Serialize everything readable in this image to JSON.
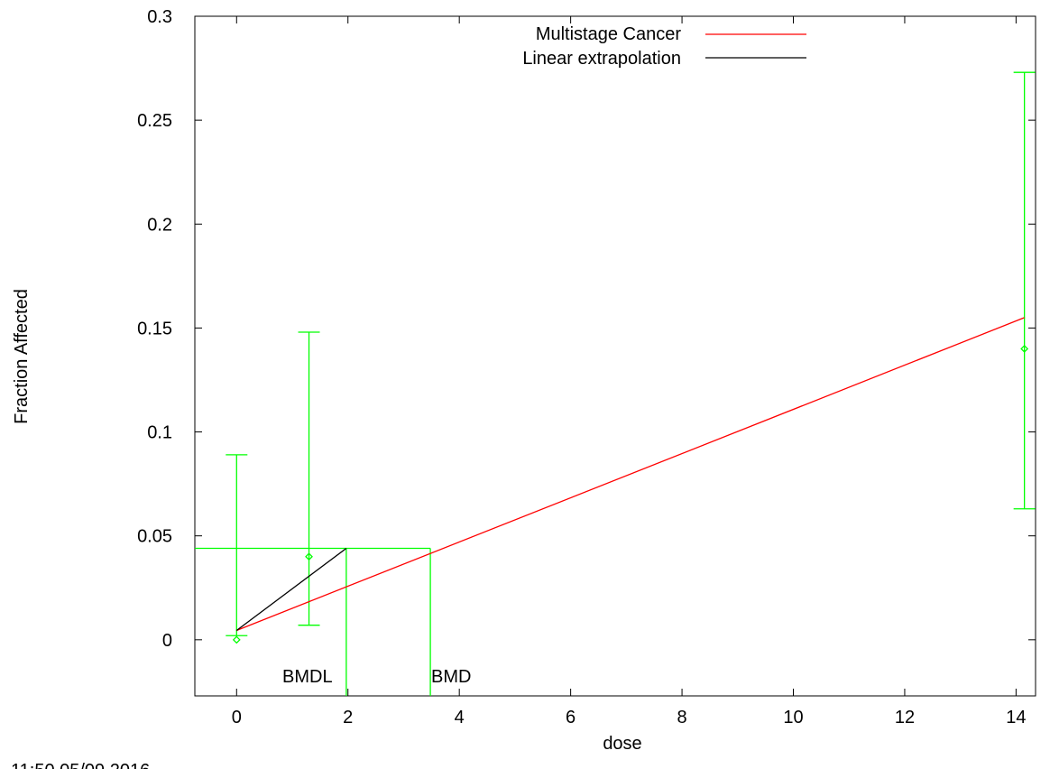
{
  "chart_data": {
    "type": "line",
    "title": "",
    "xlabel": "dose",
    "ylabel": "Fraction Affected",
    "xlim": [
      -0.75,
      14.35
    ],
    "ylim": [
      -0.027,
      0.3
    ],
    "xticks": [
      0,
      2,
      4,
      6,
      8,
      10,
      12,
      14
    ],
    "yticks": [
      0,
      0.05,
      0.1,
      0.15,
      0.2,
      0.25,
      0.3
    ],
    "ytick_labels": [
      "0",
      "0.05",
      "0.1",
      "0.15",
      "0.2",
      "0.25",
      "0.3"
    ],
    "grid": false,
    "legend_position": "top-center",
    "series": [
      {
        "name": "Multistage Cancer",
        "color": "#ff0000",
        "kind": "line",
        "x": [
          0,
          14.15
        ],
        "y": [
          0.0045,
          0.155
        ]
      },
      {
        "name": "Linear extrapolation",
        "color": "#000000",
        "kind": "line",
        "x": [
          0,
          1.97
        ],
        "y": [
          0.0045,
          0.044
        ]
      }
    ],
    "observed": {
      "color": "#00ff00",
      "points": [
        {
          "x": 0,
          "y": 0,
          "lower": 0.002,
          "upper": 0.089
        },
        {
          "x": 1.3,
          "y": 0.04,
          "lower": 0.007,
          "upper": 0.148
        },
        {
          "x": 14.15,
          "y": 0.14,
          "lower": 0.063,
          "upper": 0.273
        }
      ]
    },
    "bmr_level": 0.044,
    "bmdl": 1.97,
    "bmd": 3.48,
    "annotations": [
      "BMDL",
      "BMD"
    ]
  },
  "footer": {
    "timestamp": "11:50 05/09 2016"
  }
}
